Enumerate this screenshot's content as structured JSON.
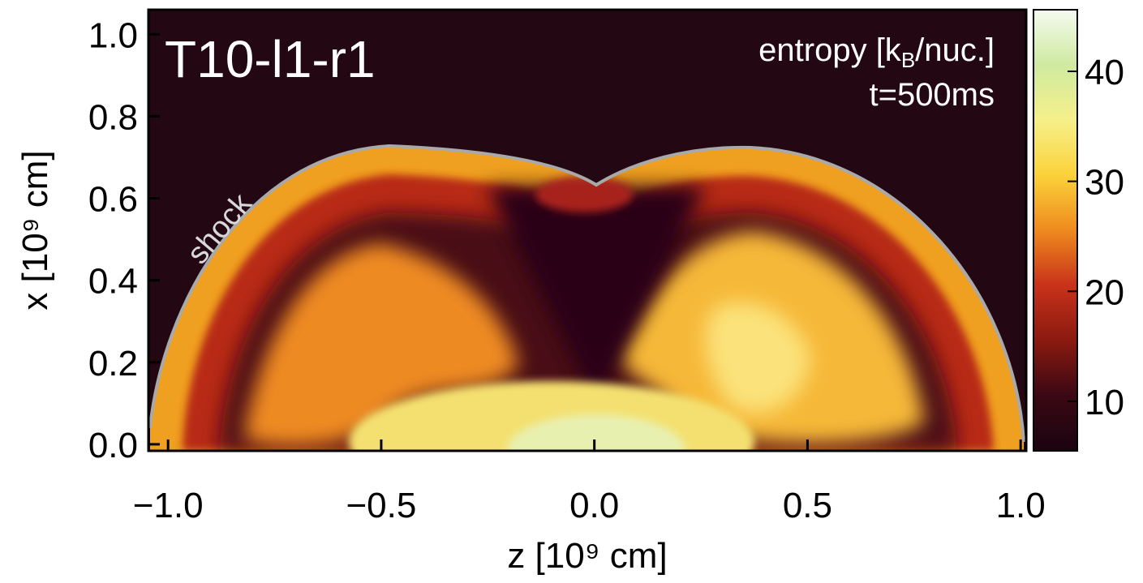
{
  "chart_data": {
    "type": "map",
    "title": "T10-l1-r1",
    "colorbar_label": [
      "entropy [k",
      "B",
      "/nuc.]"
    ],
    "time_label": "t=500ms",
    "annotation": "shock",
    "x_label": "z [10⁹ cm]",
    "y_label": "x [10⁹ cm]",
    "xlim": [
      -1.046,
      1.013
    ],
    "ylim": [
      -0.016,
      1.06
    ],
    "xticks": [
      {
        "value": -1,
        "label": "−1.0"
      },
      {
        "value": -0.5,
        "label": "−0.5"
      },
      {
        "value": 0,
        "label": "0.0"
      },
      {
        "value": 0.5,
        "label": "0.5"
      },
      {
        "value": 1,
        "label": "1.0"
      }
    ],
    "yticks": [
      {
        "value": 0,
        "label": "0.0"
      },
      {
        "value": 0.2,
        "label": "0.2"
      },
      {
        "value": 0.4,
        "label": "0.4"
      },
      {
        "value": 0.6,
        "label": "0.6"
      },
      {
        "value": 0.8,
        "label": "0.8"
      },
      {
        "value": 1,
        "label": "1.0"
      }
    ],
    "clim": [
      5.5,
      45.6
    ],
    "cticks": [
      10,
      20,
      30,
      40
    ],
    "colormap": [
      "#1a0410",
      "#3a0814",
      "#8a1a10",
      "#c8321a",
      "#ee8a1e",
      "#fbd23a",
      "#f6f08a",
      "#cfeaa0",
      "#f4fbf0"
    ]
  }
}
